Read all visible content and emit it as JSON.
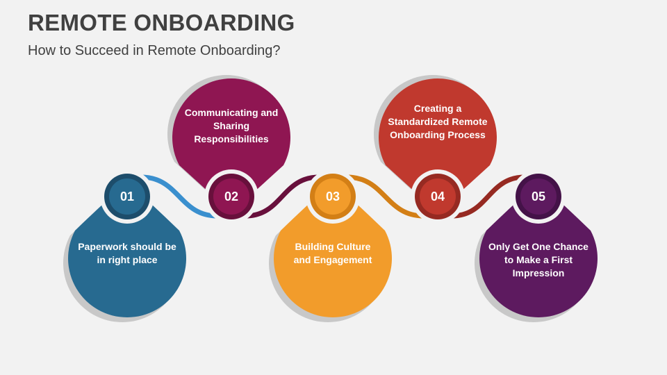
{
  "title": "REMOTE ONBOARDING",
  "subtitle": "How to Succeed in Remote Onboarding?",
  "steps": [
    {
      "number": "01",
      "text": "Paperwork should be in right place",
      "color": "#276a90",
      "ring": "#1d4d6b",
      "connector": "#3a8fce",
      "position": "bottom"
    },
    {
      "number": "02",
      "text": "Communicating and Sharing Responsibilities",
      "color": "#8f1652",
      "ring": "#68103c",
      "connector": "#68103c",
      "position": "top"
    },
    {
      "number": "03",
      "text": "Building Culture and Engagement",
      "color": "#f29c2b",
      "ring": "#d37f16",
      "connector": "#d37f16",
      "position": "bottom"
    },
    {
      "number": "04",
      "text": "Creating a Standardized Remote Onboarding Process",
      "color": "#c0392e",
      "ring": "#962a22",
      "connector": "#962a22",
      "position": "top"
    },
    {
      "number": "05",
      "text": "Only Get One Chance to Make a First Impression",
      "color": "#5d1a5f",
      "ring": "#441248",
      "position": "bottom"
    }
  ]
}
